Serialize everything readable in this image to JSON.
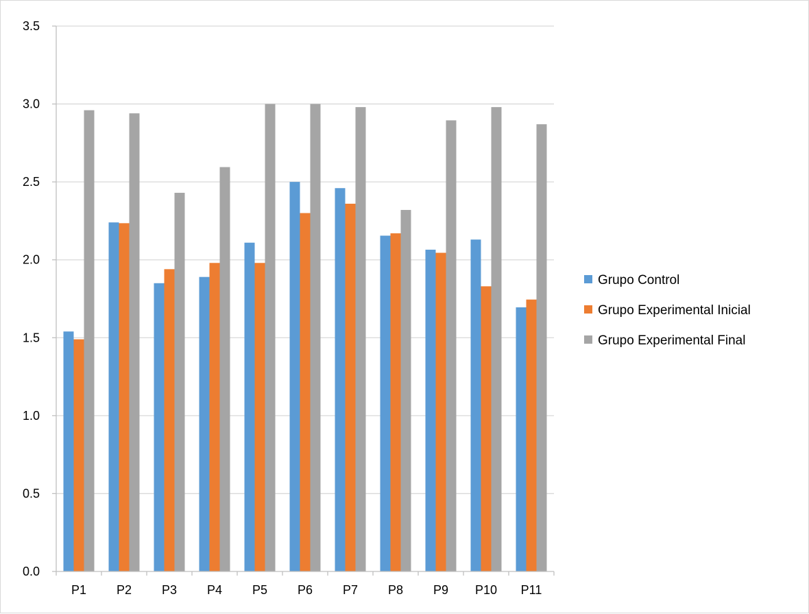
{
  "chart_data": {
    "type": "bar",
    "title": "",
    "xlabel": "",
    "ylabel": "",
    "categories": [
      "P1",
      "P2",
      "P3",
      "P4",
      "P5",
      "P6",
      "P7",
      "P8",
      "P9",
      "P10",
      "P11"
    ],
    "series": [
      {
        "name": "Grupo Control",
        "color": "#5B9BD5",
        "values": [
          1.54,
          2.24,
          1.85,
          1.89,
          2.11,
          2.5,
          2.46,
          2.155,
          2.065,
          2.13,
          1.695
        ]
      },
      {
        "name": "Grupo Experimental Inicial",
        "color": "#ED7D31",
        "values": [
          1.49,
          2.235,
          1.94,
          1.98,
          1.98,
          2.3,
          2.36,
          2.17,
          2.045,
          1.83,
          1.745
        ]
      },
      {
        "name": "Grupo Experimental Final",
        "color": "#A5A5A5",
        "values": [
          2.96,
          2.94,
          2.43,
          2.595,
          3.0,
          3.0,
          2.98,
          2.32,
          2.895,
          2.98,
          2.87
        ]
      }
    ],
    "ylim": [
      0,
      3.5
    ],
    "yticks": [
      "0.0",
      "0.5",
      "1.0",
      "1.5",
      "2.0",
      "2.5",
      "3.0",
      "3.5"
    ],
    "grid": true,
    "legend_position": "right"
  }
}
